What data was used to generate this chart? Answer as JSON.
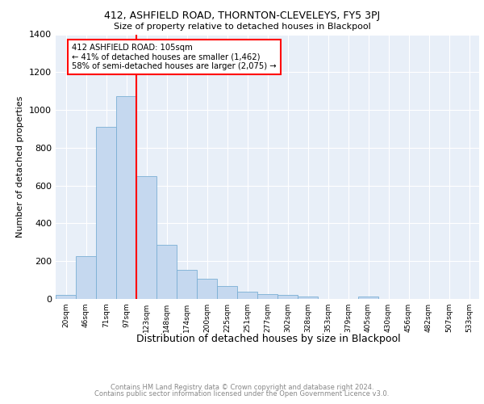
{
  "title1": "412, ASHFIELD ROAD, THORNTON-CLEVELEYS, FY5 3PJ",
  "title2": "Size of property relative to detached houses in Blackpool",
  "xlabel": "Distribution of detached houses by size in Blackpool",
  "ylabel": "Number of detached properties",
  "bar_values": [
    20,
    225,
    910,
    1075,
    650,
    285,
    155,
    105,
    70,
    38,
    25,
    20,
    12,
    0,
    0,
    12,
    0,
    0,
    0,
    0,
    0
  ],
  "bar_labels": [
    "20sqm",
    "46sqm",
    "71sqm",
    "97sqm",
    "123sqm",
    "148sqm",
    "174sqm",
    "200sqm",
    "225sqm",
    "251sqm",
    "277sqm",
    "302sqm",
    "328sqm",
    "353sqm",
    "379sqm",
    "405sqm",
    "430sqm",
    "456sqm",
    "482sqm",
    "507sqm",
    "533sqm"
  ],
  "bar_color": "#c5d8ef",
  "bar_edgecolor": "#7aafd4",
  "bg_color": "#e8eff8",
  "grid_color": "#ffffff",
  "vline_x": 3.5,
  "vline_color": "red",
  "annotation_text": "412 ASHFIELD ROAD: 105sqm\n← 41% of detached houses are smaller (1,462)\n58% of semi-detached houses are larger (2,075) →",
  "annotation_box_color": "white",
  "annotation_box_edgecolor": "red",
  "ylim": [
    0,
    1400
  ],
  "footer1": "Contains HM Land Registry data © Crown copyright and database right 2024.",
  "footer2": "Contains public sector information licensed under the Open Government Licence v3.0."
}
